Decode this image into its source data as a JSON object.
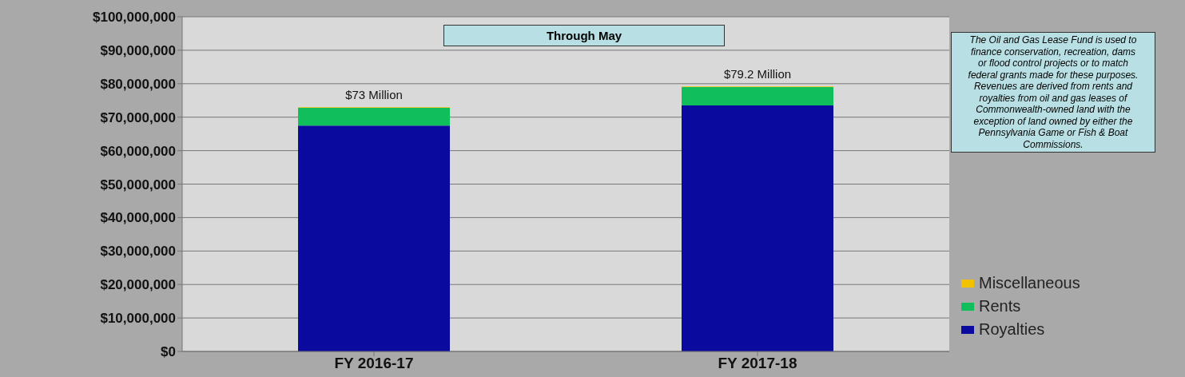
{
  "chart_data": {
    "type": "bar",
    "stacked": true,
    "categories": [
      "FY 2016-17",
      "FY 2017-18"
    ],
    "series": [
      {
        "name": "Royalties",
        "color": "#0a0a9e",
        "values": [
          67500000,
          73500000
        ]
      },
      {
        "name": "Rents",
        "color": "#10bf5c",
        "values": [
          5300000,
          5500000
        ]
      },
      {
        "name": "Miscellaneous",
        "color": "#f2c200",
        "values": [
          200000,
          200000
        ]
      }
    ],
    "ylim": [
      0,
      100000000
    ],
    "yticks": [
      {
        "value": 0,
        "label": "$0"
      },
      {
        "value": 10000000,
        "label": "$10,000,000"
      },
      {
        "value": 20000000,
        "label": "$20,000,000"
      },
      {
        "value": 30000000,
        "label": "$30,000,000"
      },
      {
        "value": 40000000,
        "label": "$40,000,000"
      },
      {
        "value": 50000000,
        "label": "$50,000,000"
      },
      {
        "value": 60000000,
        "label": "$60,000,000"
      },
      {
        "value": 70000000,
        "label": "$70,000,000"
      },
      {
        "value": 80000000,
        "label": "$80,000,000"
      },
      {
        "value": 90000000,
        "label": "$90,000,000"
      },
      {
        "value": 100000000,
        "label": "$100,000,000"
      }
    ],
    "grid": "y",
    "legend": "right",
    "annotations": [
      "Through May",
      {
        "text": "$73 Million",
        "x": "FY 2016-17",
        "y": 73000000
      },
      {
        "text": "$79.2 Million",
        "x": "FY 2017-18",
        "y": 79200000
      },
      "The Oil and Gas Lease Fund is used to finance conservation, recreation, dams or flood control projects or to match federal grants made for these purposes. Revenues are derived from rents and royalties from oil and gas leases of Commonwealth-owned land with the exception of land owned by either the Pennsylvania Game or Fish & Boat Commissions."
    ]
  }
}
